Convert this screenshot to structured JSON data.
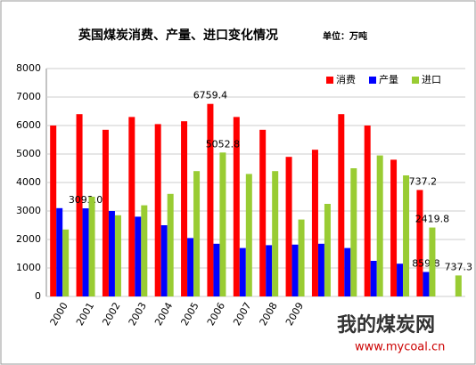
{
  "chart_data": {
    "type": "bar",
    "title": "英国煤炭消费、产量、进口变化情况",
    "subtitle": "单位：万吨",
    "categories": [
      "2000",
      "2001",
      "2002",
      "2003",
      "2004",
      "2005",
      "2006",
      "2007",
      "2008",
      "2009",
      null,
      null,
      null,
      null,
      null,
      null
    ],
    "series": [
      {
        "name": "消费",
        "color": "#ff0000",
        "values": [
          6000,
          6400,
          5850,
          6300,
          6050,
          6150,
          6759.4,
          6300,
          5850,
          4900,
          5150,
          6400,
          6000,
          4800,
          3737.2,
          null
        ],
        "value_labels": [
          null,
          null,
          null,
          null,
          null,
          null,
          "6759.4",
          null,
          null,
          null,
          null,
          null,
          null,
          null,
          "3737.2",
          null
        ],
        "label_color": "#ff0000"
      },
      {
        "name": "产量",
        "color": "#0000ff",
        "values": [
          3100,
          3093.0,
          3000,
          2800,
          2500,
          2050,
          1850,
          1700,
          1800,
          1820,
          1850,
          1700,
          1250,
          1150,
          859.8,
          null
        ],
        "value_labels": [
          null,
          "3093.0",
          null,
          null,
          null,
          null,
          null,
          null,
          null,
          null,
          null,
          null,
          null,
          null,
          "859.8",
          null
        ],
        "label_color": "#0000ff"
      },
      {
        "name": "进口",
        "color": "#99cc33",
        "values": [
          2350,
          3500,
          2850,
          3200,
          3600,
          4400,
          5052.8,
          4300,
          4400,
          2700,
          3250,
          4500,
          4950,
          4250,
          2419.8,
          737.3
        ],
        "value_labels": [
          null,
          null,
          null,
          null,
          null,
          null,
          "5052.8",
          null,
          null,
          null,
          null,
          null,
          null,
          null,
          "2419.8",
          "737.3"
        ],
        "label_color": "#000000"
      }
    ],
    "ylim": [
      0,
      8000
    ],
    "yticks": [
      0,
      1000,
      2000,
      3000,
      4000,
      5000,
      6000,
      7000,
      8000
    ],
    "grid": true,
    "legend": "top-right",
    "watermark": [
      "我的煤炭网",
      "www.mycoal.cn"
    ]
  }
}
